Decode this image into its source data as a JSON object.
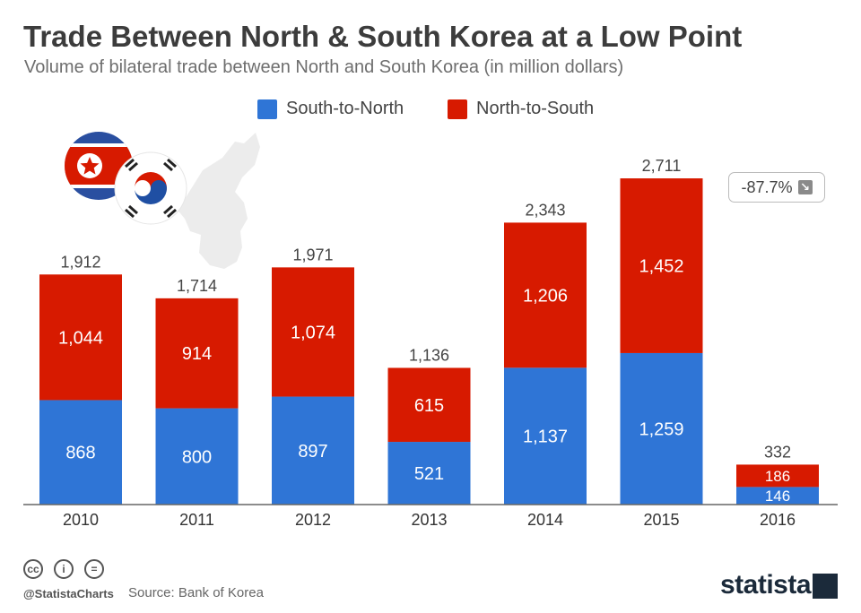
{
  "title": "Trade Between North & South Korea at a Low Point",
  "subtitle": "Volume of bilateral trade between North and South Korea (in million dollars)",
  "colors": {
    "south_to_north": "#2f75d6",
    "north_to_south": "#d71a00"
  },
  "badge": {
    "text": "-87.7%",
    "icon": "arrow-down-right-icon"
  },
  "footer": {
    "handle": "@StatistaCharts",
    "source": "Source: Bank of Korea",
    "brand": "statista"
  },
  "icons": [
    "creative-commons-icon",
    "attribution-icon",
    "no-derivatives-icon",
    "north-korea-flag-icon",
    "south-korea-flag-icon",
    "korean-peninsula-map-icon",
    "statista-logo-icon"
  ],
  "chart_data": {
    "type": "bar",
    "stacked": true,
    "categories": [
      "2010",
      "2011",
      "2012",
      "2013",
      "2014",
      "2015",
      "2016"
    ],
    "series": [
      {
        "name": "South-to-North",
        "values": [
          868,
          800,
          897,
          521,
          1137,
          1259,
          146
        ]
      },
      {
        "name": "North-to-South",
        "values": [
          1044,
          914,
          1074,
          615,
          1206,
          1452,
          186
        ]
      }
    ],
    "totals": [
      "1,912",
      "1,714",
      "1,971",
      "1,136",
      "2,343",
      "2,711",
      "332"
    ],
    "value_labels": [
      [
        "868",
        "800",
        "897",
        "521",
        "1,137",
        "1,259",
        "146"
      ],
      [
        "1,044",
        "914",
        "1,074",
        "615",
        "1,206",
        "1,452",
        "186"
      ]
    ],
    "ylim": [
      0,
      2711
    ],
    "legend_position": "top-center",
    "grid": false,
    "xlabel": "",
    "ylabel": ""
  }
}
